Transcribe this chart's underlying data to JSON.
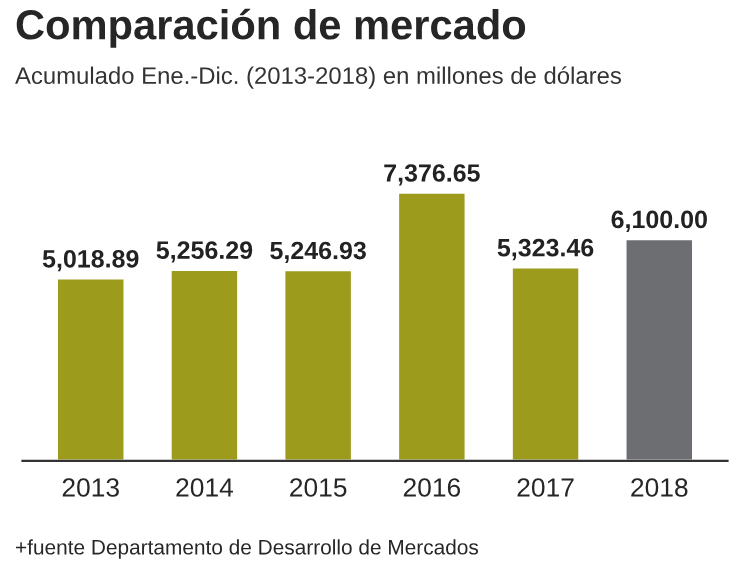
{
  "chart_data": {
    "type": "bar",
    "title": "Comparación de mercado",
    "subtitle": "Acumulado Ene.-Dic. (2013-2018) en millones de dólares",
    "categories": [
      "2013",
      "2014",
      "2015",
      "2016",
      "2017",
      "2018"
    ],
    "values": [
      5018.89,
      5256.29,
      5246.93,
      7376.65,
      5323.46,
      6100.0
    ],
    "colors": [
      "#9c9b1c",
      "#9c9b1c",
      "#9c9b1c",
      "#9c9b1c",
      "#9c9b1c",
      "#6d6e71"
    ],
    "value_labels": [
      "5,018.89",
      "5,256.29",
      "5,246.93",
      "7,376.65",
      "5,323.46",
      "6,100.00"
    ],
    "annotations": [
      "+fuente Departamento de Desarrollo de Mercados"
    ],
    "grid": false,
    "legend": false
  }
}
